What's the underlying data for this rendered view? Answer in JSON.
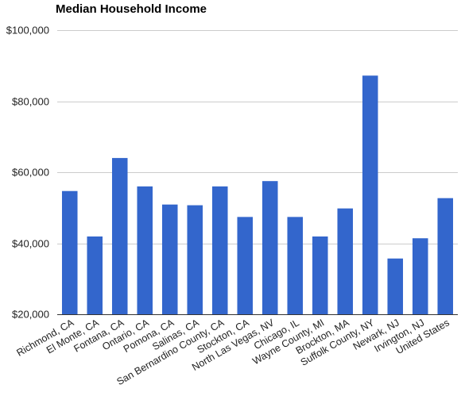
{
  "chart_data": {
    "type": "bar",
    "title": "Median Household Income",
    "xlabel": "",
    "ylabel": "",
    "categories": [
      "Richmond, CA",
      "El Monte, CA",
      "Fontana, CA",
      "Ontario, CA",
      "Pomona, CA",
      "Salinas, CA",
      "San Bernardino County, CA",
      "Stockton, CA",
      "North Las Vegas, NV",
      "Chicago, IL",
      "Wayne County, MI",
      "Brockton, MA",
      "Suffolk County, NY",
      "Newark, NJ",
      "Irvington, NJ",
      "United States"
    ],
    "values": [
      54700,
      41900,
      64000,
      56000,
      50900,
      50700,
      56000,
      47400,
      57500,
      47400,
      41900,
      49800,
      87200,
      35700,
      41400,
      52700
    ],
    "ylim": [
      20000,
      100000
    ],
    "yticks": [
      20000,
      40000,
      60000,
      80000,
      100000
    ],
    "ytick_labels": [
      "$20,000",
      "$40,000",
      "$60,000",
      "$80,000",
      "$100,000"
    ],
    "grid": true,
    "legend": "none",
    "bar_color": "#3366cc"
  }
}
